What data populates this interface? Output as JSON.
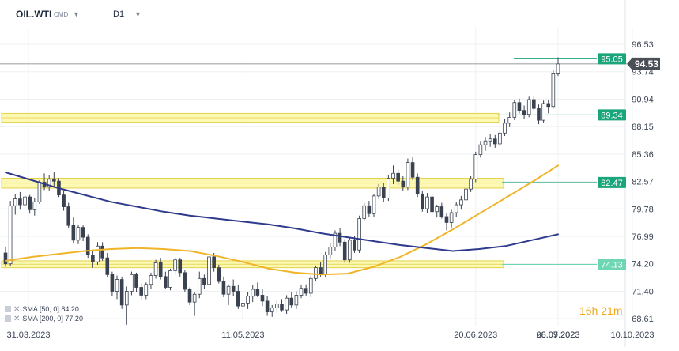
{
  "toolbar": {
    "symbol": "OIL.WTI",
    "instrument_type": "CMD",
    "timeframe": "D1",
    "dropdown_icon": "caret-down-icon"
  },
  "legend": {
    "sma_fast": "SMA [50, 0] 84.20",
    "sma_slow": "SMA [200, 0] 77.20"
  },
  "countdown": {
    "hours": "16",
    "hours_unit": "h",
    "minutes": "21",
    "minutes_unit": "m"
  },
  "colors": {
    "up_candle": "#ffffff",
    "candle_outline": "#3a4250",
    "down_candle": "#3a4250",
    "sma_fast": "#f0b429",
    "sma_slow": "#2e3a8c",
    "zone_fill": "#fdf7a6",
    "zone_border": "#e3d24a",
    "level_green": "#1aa67a",
    "level_light": "#6fd6b4",
    "price_grey": "#7a7a7a",
    "price_tag": "#4b4f56"
  },
  "chart_data": {
    "type": "candlestick",
    "symbol": "OIL.WTI",
    "timeframe": "D1",
    "current_price": 94.53,
    "y_ticks": [
      96.53,
      93.74,
      90.94,
      88.15,
      85.36,
      82.57,
      79.78,
      76.99,
      74.2,
      71.4,
      68.61
    ],
    "x_ticks": [
      "31.03.2023",
      "11.05.2023",
      "20.06.2023",
      "28.07.2023",
      "06.09.2023",
      "10.10.2023"
    ],
    "ylim": [
      67.9,
      98.3
    ],
    "grid": true,
    "levels": [
      {
        "value": 95.05,
        "label": "95.05",
        "style": "green"
      },
      {
        "value": 89.34,
        "label": "89.34",
        "style": "green"
      },
      {
        "value": 82.47,
        "label": "82.47",
        "style": "green"
      },
      {
        "value": 74.13,
        "label": "74.13",
        "style": "light"
      }
    ],
    "zones": [
      {
        "from": 88.6,
        "to": 89.5
      },
      {
        "from": 81.9,
        "to": 82.9
      },
      {
        "from": 73.8,
        "to": 74.5
      }
    ],
    "ohlc": [
      [
        75.3,
        75.9,
        73.9,
        74.2
      ],
      [
        74.2,
        80.6,
        74.0,
        80.1
      ],
      [
        80.1,
        81.3,
        79.2,
        80.8
      ],
      [
        80.8,
        81.5,
        79.7,
        80.2
      ],
      [
        80.2,
        81.4,
        79.8,
        81.0
      ],
      [
        81.0,
        81.2,
        79.3,
        79.7
      ],
      [
        79.7,
        80.9,
        79.1,
        80.5
      ],
      [
        80.5,
        82.7,
        80.3,
        82.5
      ],
      [
        82.5,
        83.4,
        81.7,
        82.0
      ],
      [
        82.0,
        83.2,
        81.6,
        82.8
      ],
      [
        82.8,
        83.5,
        82.1,
        82.6
      ],
      [
        82.6,
        82.9,
        81.0,
        81.2
      ],
      [
        81.2,
        81.6,
        79.6,
        80.0
      ],
      [
        80.0,
        80.4,
        77.8,
        78.1
      ],
      [
        78.1,
        78.9,
        76.3,
        76.6
      ],
      [
        76.6,
        78.2,
        76.2,
        77.9
      ],
      [
        77.9,
        78.1,
        76.5,
        76.9
      ],
      [
        76.9,
        77.2,
        74.8,
        75.1
      ],
      [
        75.1,
        75.6,
        73.8,
        74.4
      ],
      [
        74.4,
        76.4,
        74.1,
        76.0
      ],
      [
        76.0,
        76.4,
        74.5,
        74.8
      ],
      [
        74.8,
        75.3,
        72.8,
        73.1
      ],
      [
        73.1,
        73.4,
        70.9,
        71.4
      ],
      [
        71.4,
        73.0,
        70.6,
        72.6
      ],
      [
        72.6,
        72.9,
        69.6,
        70.0
      ],
      [
        70.0,
        71.9,
        68.0,
        71.4
      ],
      [
        71.4,
        73.4,
        71.0,
        73.1
      ],
      [
        73.1,
        73.3,
        71.3,
        71.8
      ],
      [
        71.8,
        72.2,
        70.5,
        71.0
      ],
      [
        71.0,
        72.3,
        70.6,
        72.1
      ],
      [
        72.1,
        73.3,
        71.6,
        73.0
      ],
      [
        73.0,
        74.6,
        72.7,
        74.3
      ],
      [
        74.3,
        74.8,
        72.6,
        72.9
      ],
      [
        72.9,
        73.4,
        71.6,
        71.8
      ],
      [
        71.8,
        73.7,
        71.5,
        73.5
      ],
      [
        73.5,
        74.9,
        73.1,
        74.6
      ],
      [
        74.6,
        74.8,
        72.9,
        73.3
      ],
      [
        73.3,
        73.6,
        71.3,
        71.6
      ],
      [
        71.6,
        71.8,
        70.0,
        70.3
      ],
      [
        70.3,
        71.3,
        68.9,
        71.1
      ],
      [
        71.1,
        73.4,
        70.7,
        72.7
      ],
      [
        72.7,
        73.1,
        71.6,
        72.1
      ],
      [
        72.1,
        75.2,
        71.8,
        74.9
      ],
      [
        74.9,
        75.3,
        73.4,
        73.8
      ],
      [
        73.8,
        74.1,
        72.2,
        72.4
      ],
      [
        72.4,
        72.9,
        70.8,
        71.1
      ],
      [
        71.1,
        72.1,
        70.0,
        71.9
      ],
      [
        71.9,
        72.6,
        70.9,
        71.4
      ],
      [
        71.4,
        72.0,
        69.6,
        69.9
      ],
      [
        69.9,
        70.6,
        68.6,
        70.2
      ],
      [
        70.2,
        71.3,
        69.6,
        70.9
      ],
      [
        70.9,
        72.0,
        70.3,
        71.6
      ],
      [
        71.6,
        72.3,
        70.8,
        71.0
      ],
      [
        71.0,
        71.6,
        69.9,
        70.4
      ],
      [
        70.4,
        70.9,
        68.9,
        69.3
      ],
      [
        69.3,
        70.0,
        68.8,
        69.7
      ],
      [
        69.7,
        70.5,
        69.2,
        70.1
      ],
      [
        70.1,
        70.6,
        69.3,
        69.5
      ],
      [
        69.5,
        71.0,
        69.1,
        70.7
      ],
      [
        70.7,
        71.3,
        69.7,
        70.0
      ],
      [
        70.0,
        71.4,
        69.6,
        71.0
      ],
      [
        71.0,
        72.0,
        70.7,
        71.7
      ],
      [
        71.7,
        72.1,
        70.9,
        71.2
      ],
      [
        71.2,
        73.0,
        70.8,
        72.7
      ],
      [
        72.7,
        74.0,
        72.4,
        73.8
      ],
      [
        73.8,
        74.4,
        72.9,
        73.1
      ],
      [
        73.1,
        75.4,
        72.8,
        75.1
      ],
      [
        75.1,
        76.3,
        74.7,
        75.9
      ],
      [
        75.9,
        77.6,
        75.5,
        77.3
      ],
      [
        77.3,
        77.8,
        76.0,
        76.4
      ],
      [
        76.4,
        76.7,
        74.3,
        74.6
      ],
      [
        74.6,
        76.9,
        74.3,
        76.6
      ],
      [
        76.6,
        77.0,
        75.3,
        75.6
      ],
      [
        75.6,
        79.1,
        75.3,
        78.8
      ],
      [
        78.8,
        80.4,
        78.5,
        80.1
      ],
      [
        80.1,
        80.6,
        79.0,
        79.3
      ],
      [
        79.3,
        81.3,
        79.0,
        81.1
      ],
      [
        81.1,
        82.3,
        80.8,
        82.0
      ],
      [
        82.0,
        82.4,
        80.5,
        80.9
      ],
      [
        80.9,
        83.2,
        80.6,
        82.9
      ],
      [
        82.9,
        84.2,
        82.3,
        83.4
      ],
      [
        83.4,
        83.8,
        82.2,
        82.6
      ],
      [
        82.6,
        83.1,
        81.6,
        82.0
      ],
      [
        82.0,
        84.9,
        81.7,
        84.5
      ],
      [
        84.5,
        85.1,
        82.7,
        83.0
      ],
      [
        83.0,
        83.4,
        81.0,
        81.3
      ],
      [
        81.3,
        81.6,
        79.5,
        79.8
      ],
      [
        79.8,
        81.4,
        79.4,
        81.0
      ],
      [
        81.0,
        81.3,
        79.2,
        79.5
      ],
      [
        79.5,
        80.2,
        78.9,
        80.0
      ],
      [
        80.0,
        80.4,
        78.8,
        79.0
      ],
      [
        79.0,
        79.4,
        77.6,
        78.4
      ],
      [
        78.4,
        79.7,
        77.9,
        79.4
      ],
      [
        79.4,
        80.5,
        79.0,
        80.2
      ],
      [
        80.2,
        81.1,
        79.7,
        80.7
      ],
      [
        80.7,
        82.1,
        80.4,
        81.8
      ],
      [
        81.8,
        83.1,
        81.5,
        82.8
      ],
      [
        82.8,
        85.6,
        82.5,
        85.3
      ],
      [
        85.3,
        86.7,
        85.0,
        86.3
      ],
      [
        86.3,
        87.1,
        85.7,
        86.7
      ],
      [
        86.7,
        87.4,
        86.1,
        86.9
      ],
      [
        86.9,
        87.3,
        86.0,
        86.4
      ],
      [
        86.4,
        87.8,
        86.1,
        87.5
      ],
      [
        87.5,
        88.9,
        87.2,
        88.5
      ],
      [
        88.5,
        89.6,
        88.1,
        89.1
      ],
      [
        89.1,
        90.9,
        88.8,
        90.6
      ],
      [
        90.6,
        91.0,
        89.5,
        89.8
      ],
      [
        89.8,
        90.3,
        88.9,
        89.4
      ],
      [
        89.4,
        91.2,
        89.1,
        90.9
      ],
      [
        90.9,
        91.3,
        89.7,
        90.0
      ],
      [
        90.0,
        90.4,
        88.4,
        88.8
      ],
      [
        88.8,
        90.8,
        88.5,
        90.5
      ],
      [
        90.5,
        90.9,
        89.5,
        90.2
      ],
      [
        90.2,
        93.9,
        90.0,
        93.6
      ],
      [
        93.6,
        95.2,
        93.3,
        94.53
      ]
    ],
    "series": [
      {
        "name": "SMA [50, 0] 84.20",
        "color": "#f0b429",
        "values": [
          74.5,
          74.9,
          75.2,
          75.5,
          75.7,
          75.8,
          75.7,
          75.5,
          75.0,
          74.4,
          73.7,
          73.3,
          73.1,
          73.2,
          73.9,
          74.9,
          76.2,
          77.7,
          79.3,
          80.9,
          82.5,
          84.2
        ]
      },
      {
        "name": "SMA [200, 0] 77.20",
        "color": "#2e3a8c",
        "values": [
          83.5,
          82.7,
          81.9,
          81.2,
          80.5,
          80.0,
          79.5,
          79.1,
          78.8,
          78.5,
          78.2,
          77.8,
          77.3,
          76.9,
          76.5,
          76.1,
          75.8,
          75.5,
          75.7,
          76.0,
          76.6,
          77.2
        ]
      }
    ]
  }
}
